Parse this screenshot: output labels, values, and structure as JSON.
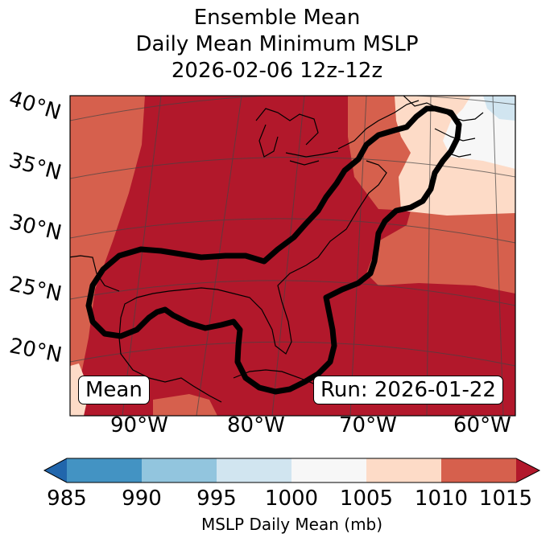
{
  "title": {
    "line1": "Ensemble Mean",
    "line2": "Daily Mean Minimum MSLP",
    "line3": "2026-02-06 12z-12z"
  },
  "map": {
    "lat_labels": [
      "40°N",
      "35°N",
      "30°N",
      "25°N",
      "20°N"
    ],
    "lon_labels": [
      "90°W",
      "80°W",
      "70°W",
      "60°W"
    ],
    "mean_label": "Mean",
    "run_label": "Run: 2026-01-22"
  },
  "colorbar": {
    "ticks": [
      "985",
      "990",
      "995",
      "1000",
      "1005",
      "1010",
      "1015"
    ],
    "label": "MSLP Daily Mean (mb)",
    "colors": [
      "#2166ac",
      "#4393c3",
      "#92c5de",
      "#d1e5f0",
      "#f7f7f7",
      "#fddbc7",
      "#d6604d",
      "#b2182b"
    ]
  },
  "colors": {
    "dark_red": "#b2182b",
    "medium_red": "#d6604d",
    "light_salmon": "#fddbc7",
    "near_white": "#f7f7f7",
    "light_blue": "#d1e5f0"
  }
}
